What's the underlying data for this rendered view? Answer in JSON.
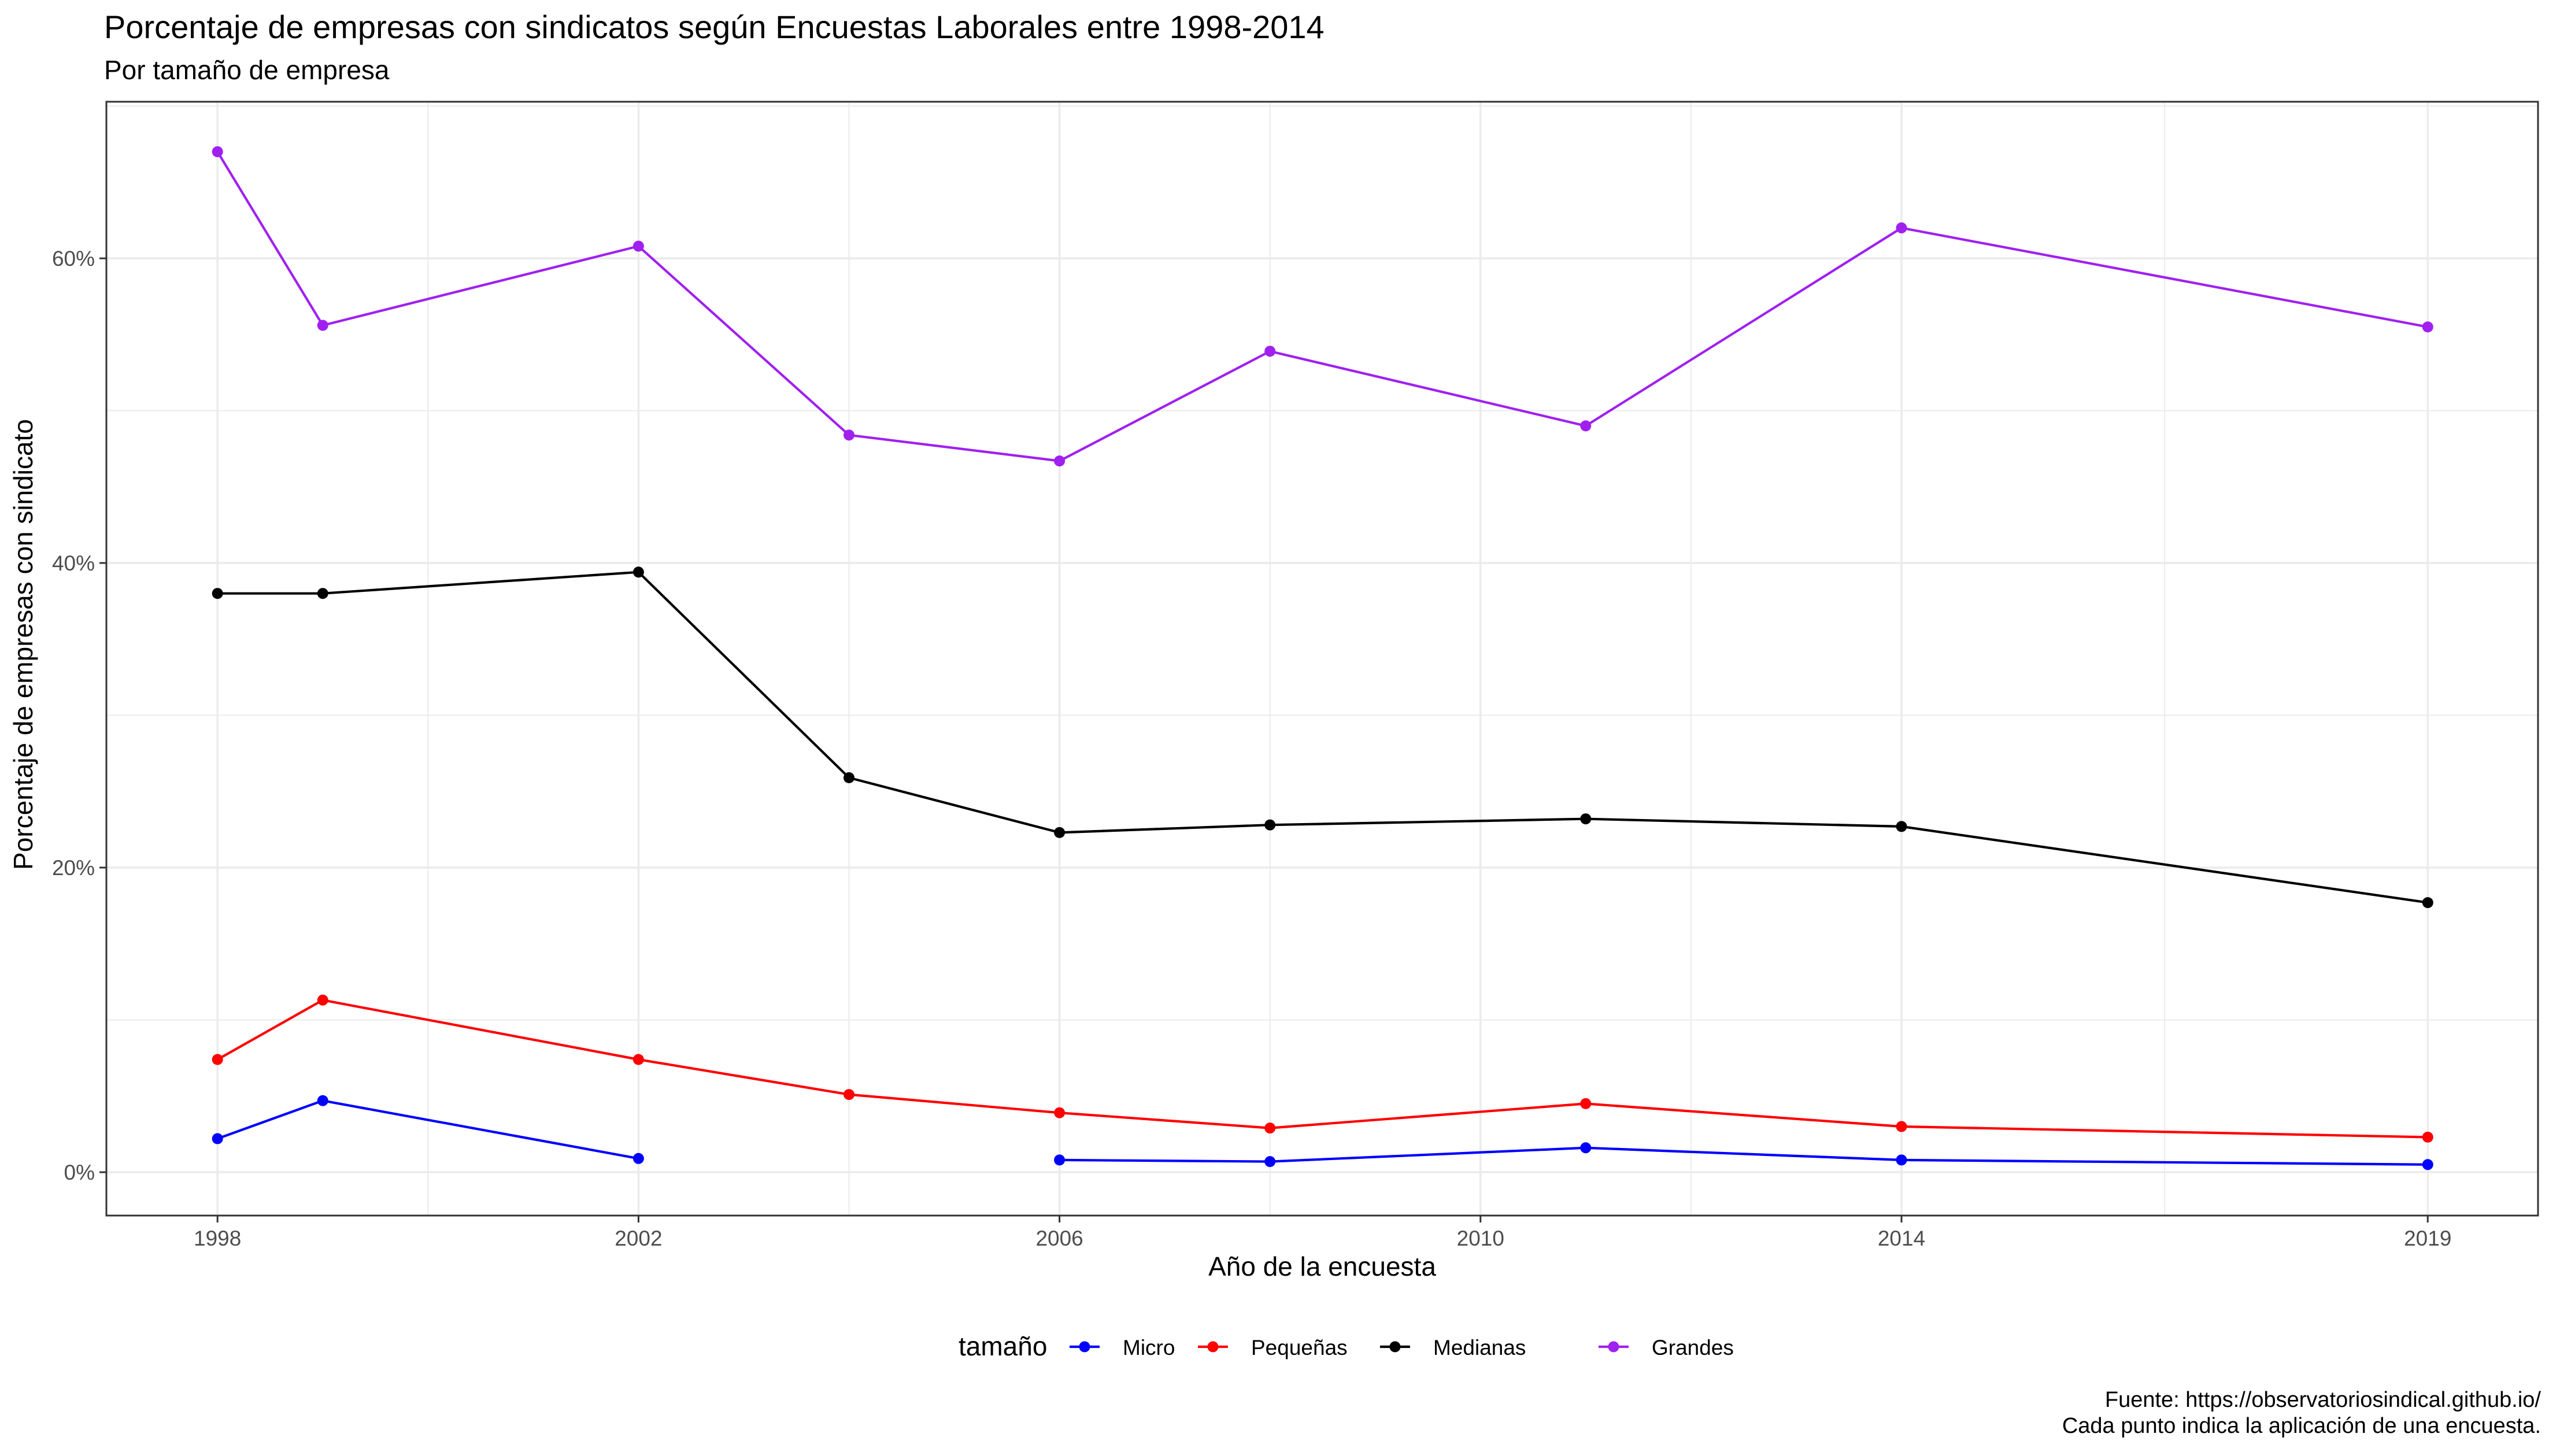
{
  "chart_data": {
    "type": "line",
    "title": "Porcentaje de empresas con sindicatos según Encuestas Laborales entre 1998-2014",
    "subtitle": "Por tamaño de empresa",
    "xlabel": "Año de la encuesta",
    "ylabel": "Porcentaje de empresas con sindicato",
    "legend_title": "tamaño",
    "legend_position": "bottom",
    "caption_lines": [
      "Fuente: https://observatoriosindical.github.io/",
      "Cada punto indica la aplicación de una encuesta."
    ],
    "x_ticks": [
      1998,
      2002,
      2006,
      2010,
      2014,
      2019
    ],
    "x_tick_labels": [
      "1998",
      "2002",
      "2006",
      "2010",
      "2014",
      "2019"
    ],
    "y_ticks": [
      0,
      20,
      40,
      60
    ],
    "y_tick_labels": [
      "0%",
      "20%",
      "40%",
      "60%"
    ],
    "grid": true,
    "series": [
      {
        "name": "Micro",
        "color": "#0000ff",
        "segments": [
          [
            [
              1998,
              2.2
            ],
            [
              1999,
              4.7
            ],
            [
              2002,
              0.9
            ]
          ],
          [
            [
              2006,
              0.8
            ],
            [
              2008,
              0.7
            ],
            [
              2011,
              1.6
            ],
            [
              2014,
              0.8
            ],
            [
              2019,
              0.5
            ]
          ]
        ]
      },
      {
        "name": "Pequeñas",
        "color": "#ff0000",
        "segments": [
          [
            [
              1998,
              7.4
            ],
            [
              1999,
              11.3
            ],
            [
              2002,
              7.4
            ],
            [
              2004,
              5.1
            ],
            [
              2006,
              3.9
            ],
            [
              2008,
              2.9
            ],
            [
              2011,
              4.5
            ],
            [
              2014,
              3.0
            ],
            [
              2019,
              2.3
            ]
          ]
        ]
      },
      {
        "name": "Medianas",
        "color": "#000000",
        "segments": [
          [
            [
              1998,
              38.0
            ],
            [
              1999,
              38.0
            ],
            [
              2002,
              39.4
            ],
            [
              2004,
              25.9
            ],
            [
              2006,
              22.3
            ],
            [
              2008,
              22.8
            ],
            [
              2011,
              23.2
            ],
            [
              2014,
              22.7
            ],
            [
              2019,
              17.7
            ]
          ]
        ]
      },
      {
        "name": "Grandes",
        "color": "#a020f0",
        "segments": [
          [
            [
              1998,
              67.0
            ],
            [
              1999,
              55.6
            ],
            [
              2002,
              60.8
            ],
            [
              2004,
              48.4
            ],
            [
              2006,
              46.7
            ],
            [
              2008,
              53.9
            ],
            [
              2011,
              49.0
            ],
            [
              2014,
              62.0
            ],
            [
              2019,
              55.5
            ]
          ]
        ]
      }
    ]
  }
}
